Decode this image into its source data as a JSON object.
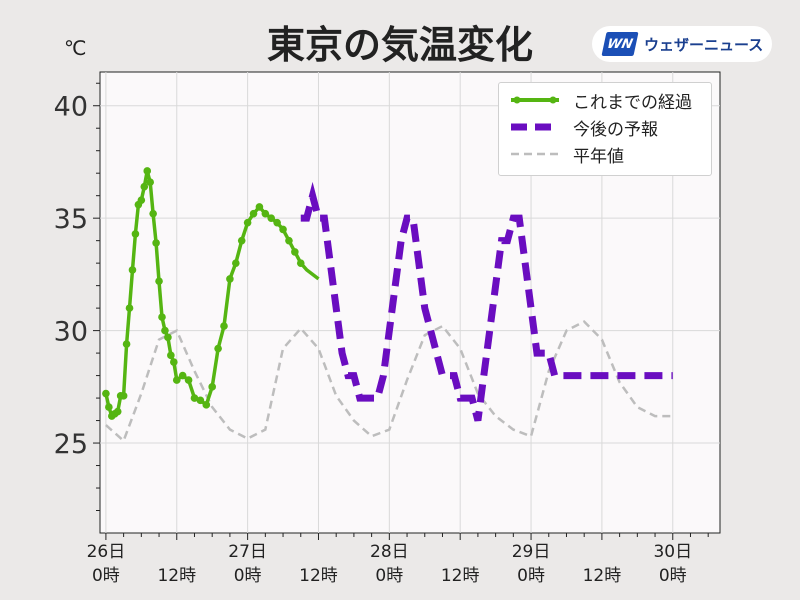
{
  "title": "東京の気温変化",
  "unit": "℃",
  "logo": {
    "mark": "WN",
    "text": "ウェザーニュース"
  },
  "legend": [
    {
      "label": "これまでの経過"
    },
    {
      "label": "今後の予報"
    },
    {
      "label": "平年値"
    }
  ],
  "colors": {
    "observed": "#55b512",
    "forecast": "#6a0dc0",
    "normal": "#bdbdbd",
    "plot_bg": "#fbf9fa",
    "grid": "#d9d9d9"
  },
  "chart_data": {
    "type": "line",
    "title": "東京の気温変化",
    "ylabel": "℃",
    "ylim": [
      21,
      41.5
    ],
    "xlim": [
      -1,
      104
    ],
    "yticks": [
      25,
      30,
      35,
      40
    ],
    "xticks": [
      {
        "x": 0,
        "line1": "26日",
        "line2": "0時"
      },
      {
        "x": 12,
        "line1": "",
        "line2": "12時"
      },
      {
        "x": 24,
        "line1": "27日",
        "line2": "0時"
      },
      {
        "x": 36,
        "line1": "",
        "line2": "12時"
      },
      {
        "x": 48,
        "line1": "28日",
        "line2": "0時"
      },
      {
        "x": 60,
        "line1": "",
        "line2": "12時"
      },
      {
        "x": 72,
        "line1": "29日",
        "line2": "0時"
      },
      {
        "x": 84,
        "line1": "",
        "line2": "12時"
      },
      {
        "x": 96,
        "line1": "30日",
        "line2": "0時"
      }
    ],
    "grid": true,
    "legend_position": "top-right",
    "series": [
      {
        "name": "これまでの経過",
        "style": "solid-markers",
        "x": [
          0,
          0.5,
          1,
          1.5,
          2,
          2.5,
          3,
          3.5,
          4,
          4.5,
          5,
          5.5,
          6,
          6.5,
          7,
          7.5,
          8,
          8.5,
          9,
          9.5,
          10,
          10.5,
          11,
          11.5,
          12,
          13,
          14,
          15,
          16,
          17,
          18,
          19,
          20,
          21,
          22,
          23,
          24,
          25,
          26,
          27,
          28,
          29,
          30,
          31,
          32,
          33,
          34,
          35,
          36
        ],
        "y": [
          27.2,
          26.6,
          26.2,
          26.3,
          26.4,
          27.1,
          27.1,
          29.4,
          31.0,
          32.7,
          34.3,
          35.6,
          35.8,
          36.4,
          37.1,
          36.6,
          35.2,
          33.9,
          32.2,
          30.6,
          30.0,
          29.7,
          28.9,
          28.6,
          27.8,
          28.0,
          27.8,
          27.0,
          26.9,
          26.7,
          27.5,
          29.2,
          30.2,
          32.3,
          33.0,
          34.0,
          34.8,
          35.2,
          35.5,
          35.2,
          35.0,
          34.8,
          34.5,
          34.0,
          33.5,
          33.0,
          32.7,
          32.5,
          32.3
        ]
      },
      {
        "name": "今後の予報",
        "style": "dashed",
        "x": [
          33,
          34,
          35,
          36,
          37,
          38,
          39,
          40,
          41,
          42,
          43,
          44,
          45,
          46,
          47,
          48,
          49,
          50,
          51,
          52,
          53,
          54,
          55,
          56,
          57,
          58,
          59,
          60,
          61,
          62,
          63,
          64,
          65,
          66,
          67,
          68,
          69,
          70,
          71,
          72,
          73,
          74,
          75,
          76,
          77,
          78,
          79,
          80,
          81,
          82,
          83,
          84,
          85,
          86,
          87,
          88,
          89,
          90,
          91,
          92,
          93,
          94,
          95,
          96
        ],
        "y": [
          35,
          35,
          36,
          35,
          35,
          33,
          31,
          29,
          28,
          28,
          27,
          27,
          27,
          27,
          28,
          30,
          32,
          34,
          35,
          35,
          33,
          31,
          30,
          29,
          28,
          28,
          28,
          27,
          27,
          27,
          26,
          28,
          30,
          32,
          34,
          34,
          35,
          35,
          33,
          31,
          29,
          29,
          29,
          28,
          28,
          28,
          28,
          28,
          28,
          28,
          28,
          28,
          28,
          28,
          28,
          28,
          28,
          28,
          28,
          28,
          28,
          28,
          28,
          28
        ]
      },
      {
        "name": "平年値",
        "style": "dashed-light",
        "x": [
          0,
          3,
          6,
          9,
          12,
          15,
          18,
          21,
          24,
          27,
          30,
          33,
          36,
          39,
          42,
          45,
          48,
          51,
          54,
          57,
          60,
          63,
          66,
          69,
          72,
          75,
          78,
          81,
          84,
          87,
          90,
          93,
          96
        ],
        "y": [
          25.8,
          25.1,
          27.2,
          29.6,
          30.0,
          28.2,
          26.6,
          25.6,
          25.2,
          25.6,
          29.2,
          30.1,
          29.2,
          27.1,
          26.0,
          25.3,
          25.6,
          27.8,
          29.8,
          30.2,
          29.2,
          27.2,
          26.2,
          25.6,
          25.3,
          28.2,
          30.0,
          30.4,
          29.6,
          27.7,
          26.6,
          26.2,
          26.2
        ]
      }
    ]
  }
}
